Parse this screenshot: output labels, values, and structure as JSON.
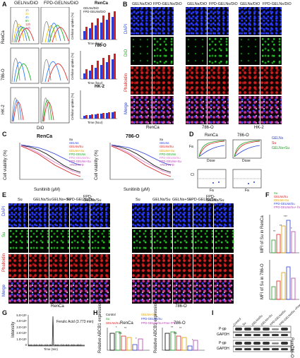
{
  "panels": {
    "A": {
      "label": "A",
      "columns": [
        "GELNs/DiO",
        "FPD-GELNs/DiO"
      ],
      "rows": [
        "RenCa",
        "786-O",
        "HK-2"
      ],
      "legend": [
        "1h",
        "2h",
        "4h",
        "8h",
        "12h",
        "24h"
      ],
      "x_label": "DiO",
      "bar_y_label": "Cellular uptake (%)",
      "bar_x_label": "Time (hour)",
      "bar_legend": [
        "GELNs/DiO",
        "FPD-GELNs/DiO"
      ],
      "bar_titles": [
        "RenCa",
        "786-O",
        "HK-2"
      ],
      "bar_ticks": [
        "1",
        "2",
        "4",
        "8",
        "12",
        "24"
      ],
      "y_ticks": [
        "0",
        "20",
        "40",
        "60",
        "80",
        "100"
      ]
    },
    "B": {
      "label": "B",
      "columns": [
        "GELNs/DiO",
        "FPD-GELNs/DiO",
        "GELNs/DiO",
        "FPD-GELNs/DiO",
        "GELNs/DiO",
        "FPD-GELNs/DiO"
      ],
      "rows": [
        "DAPI",
        "DiO",
        "Phalloidin",
        "Merge"
      ],
      "cells": [
        "RenCa",
        "786-O",
        "HK-2"
      ],
      "scale": "100μm"
    },
    "C": {
      "label": "C",
      "titles": [
        "RenCa",
        "786-O"
      ],
      "x_label": "Sunitinib (μM)",
      "y_label": "Cell viability (%)",
      "x_ticks": [
        "0",
        "0.25",
        "0.5",
        "1",
        "2",
        "4",
        "8",
        "16"
      ],
      "y_ticks": [
        "0",
        "25",
        "50",
        "75",
        "100",
        "125"
      ],
      "legend": [
        "Su",
        "GELNs",
        "GELNs/Su",
        "GELNs+Su",
        "FPD-GELNs",
        "FPD-GELNs/Su",
        "FPD-GELNs+Su",
        "+Free FPD"
      ]
    },
    "D": {
      "label": "D",
      "titles": [
        "RenCa",
        "786-O"
      ],
      "fa": "Fa",
      "ci": "CI",
      "dose": "Dose",
      "legend": [
        "GELNs",
        "Su",
        "GELNs+Su"
      ]
    },
    "E": {
      "label": "E",
      "columns": [
        "Su",
        "GELNs/Su",
        "GELNs+Su",
        "FPD-GELNs/Su",
        "FPD-GELNs/Su +Free FPD"
      ],
      "rows": [
        "DAPI",
        "Su",
        "Phalloidin",
        "Merge"
      ],
      "cells": [
        "RenCa",
        "786-O"
      ],
      "scale": "100μm"
    },
    "F": {
      "label": "F",
      "legend": [
        "Su",
        "GELNs/Su",
        "GELNs+Su",
        "FPD-GELNs/Su",
        "FPD-GELNs/Su+ free FPD"
      ],
      "y_labels": [
        "MFI of Su in RenCa",
        "MFI of Su in 786-O"
      ],
      "sig": [
        "**",
        "**",
        "***",
        "*"
      ]
    },
    "G": {
      "label": "G",
      "peak": "Ferulic Acid (3.773 min)",
      "y_label": "Intensity",
      "x_label": "Time (min)",
      "y_ticks": [
        "0",
        "1.0×10⁵",
        "2.0×10⁵",
        "3.0×10⁵",
        "4.0×10⁵",
        "5.0×10⁵"
      ],
      "x_ticks": [
        "1.0",
        "2.0",
        "3.0",
        "4.0",
        "5.0",
        "6.0",
        "7.0",
        "8.0",
        "9.0",
        "10.0"
      ]
    },
    "H": {
      "label": "H",
      "legend": [
        "Control",
        "Su",
        "GELNs/Su",
        "GELNs+Su",
        "FPD-GELNs/Su",
        "FPD-GELNs/Su+Free FPD"
      ],
      "titles": [
        "RenCa",
        "786-O"
      ],
      "y_label": "Relative ABCB1 expression",
      "sig": [
        "*",
        "**",
        "ns",
        "*",
        "**",
        "**",
        "ns",
        "*"
      ]
    },
    "I": {
      "label": "I",
      "columns": [
        "Control",
        "Su",
        "GELNs/Su",
        "GELNs+Su",
        "FPD-GELNs/Su",
        "FPD-GELNs/Su +Free FPD"
      ],
      "bands": [
        "P-gp",
        "GAPDH",
        "P-gp",
        "GAPDH"
      ],
      "cells": [
        "RenCa",
        "786-O"
      ]
    }
  }
}
